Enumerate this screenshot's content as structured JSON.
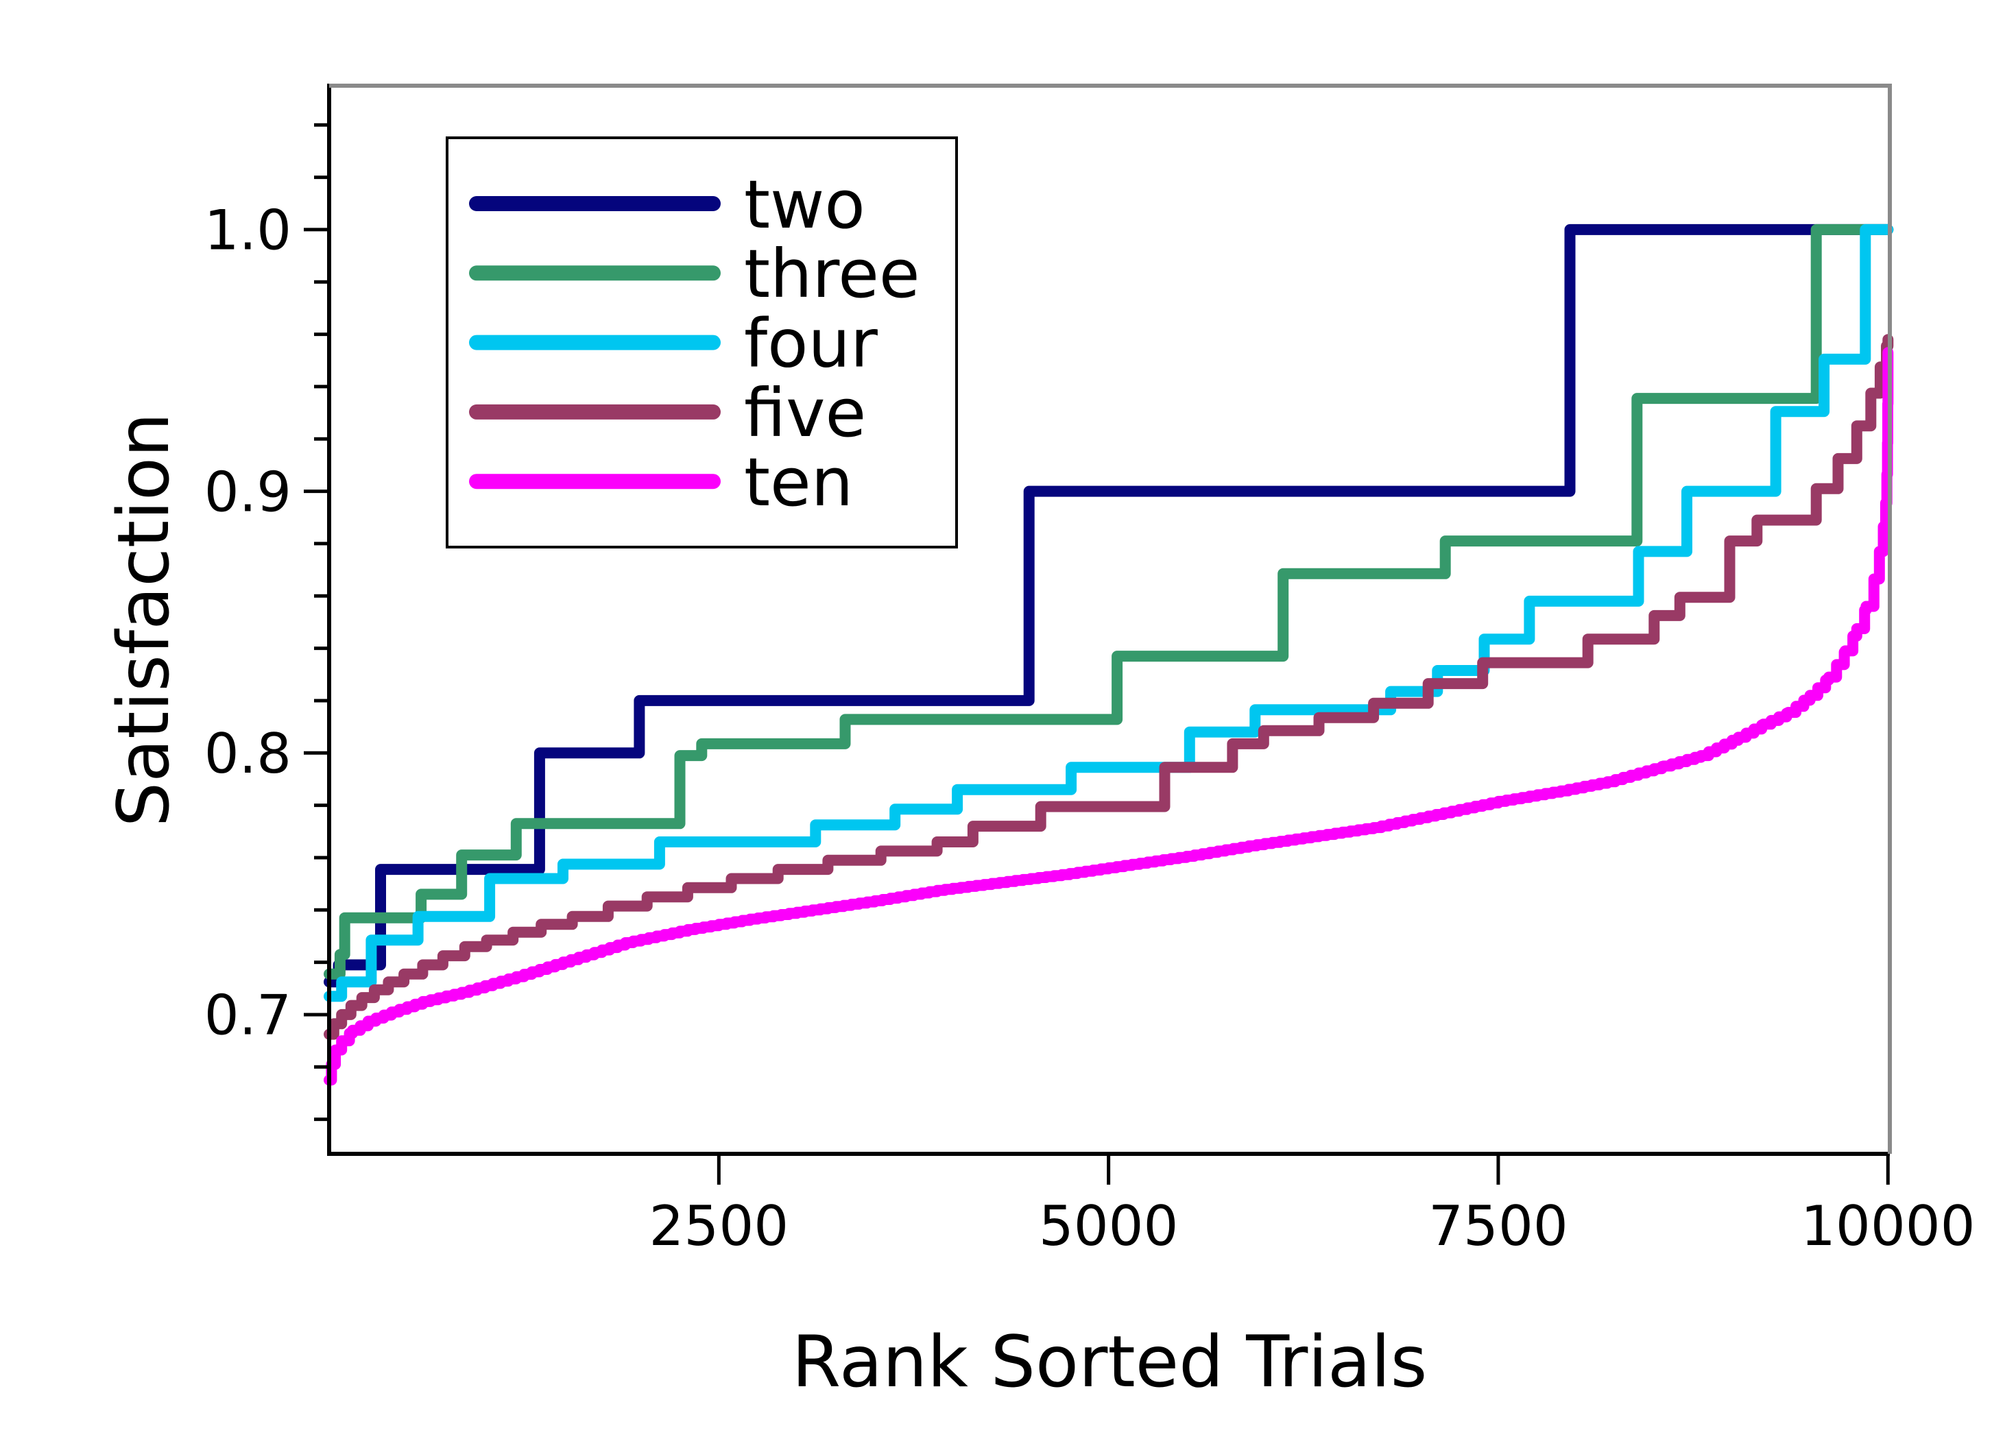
{
  "chart_data": {
    "type": "line",
    "subtype": "rank-sorted step curves",
    "title": "",
    "xlabel": "Rank Sorted Trials",
    "ylabel": "Satisfaction",
    "xlim": [
      0,
      10012
    ],
    "ylim": [
      0.6468,
      1.055
    ],
    "grid": false,
    "legend_position": "upper left",
    "x_ticks": [
      {
        "value": 2500,
        "label": "2500"
      },
      {
        "value": 5000,
        "label": "5000"
      },
      {
        "value": 7500,
        "label": "7500"
      },
      {
        "value": 10000,
        "label": "10000"
      }
    ],
    "y_ticks": [
      {
        "value": 0.7,
        "label": "0.7"
      },
      {
        "value": 0.8,
        "label": "0.8"
      },
      {
        "value": 0.9,
        "label": "0.9"
      },
      {
        "value": 1.0,
        "label": "1.0"
      }
    ],
    "y_minor_ticks": [
      0.66,
      0.68,
      0.72,
      0.74,
      0.76,
      0.78,
      0.82,
      0.84,
      0.86,
      0.88,
      0.92,
      0.94,
      0.96,
      0.98,
      1.02,
      1.04
    ],
    "series": [
      {
        "name": "two",
        "color": "#05057d",
        "render": "step",
        "points": [
          [
            0,
            0.7125
          ],
          [
            60,
            0.719
          ],
          [
            330,
            0.7555
          ],
          [
            1350,
            0.8
          ],
          [
            1990,
            0.82
          ],
          [
            4490,
            0.9
          ],
          [
            7960,
            1.0
          ],
          [
            10000,
            1.0
          ]
        ]
      },
      {
        "name": "three",
        "color": "#36996b",
        "render": "step",
        "points": [
          [
            0,
            0.7155
          ],
          [
            70,
            0.723
          ],
          [
            100,
            0.737
          ],
          [
            590,
            0.746
          ],
          [
            850,
            0.761
          ],
          [
            1200,
            0.773
          ],
          [
            2250,
            0.799
          ],
          [
            2390,
            0.8035
          ],
          [
            3310,
            0.8128
          ],
          [
            5055,
            0.837
          ],
          [
            6120,
            0.8685
          ],
          [
            7160,
            0.881
          ],
          [
            8390,
            0.9355
          ],
          [
            9540,
            1.0
          ],
          [
            10000,
            1.0
          ]
        ]
      },
      {
        "name": "four",
        "color": "#00c6f0",
        "render": "step",
        "points": [
          [
            0,
            0.707
          ],
          [
            80,
            0.7125
          ],
          [
            270,
            0.7285
          ],
          [
            570,
            0.7375
          ],
          [
            1030,
            0.752
          ],
          [
            1500,
            0.7575
          ],
          [
            2120,
            0.766
          ],
          [
            3120,
            0.7725
          ],
          [
            3630,
            0.7785
          ],
          [
            4030,
            0.786
          ],
          [
            4760,
            0.7945
          ],
          [
            5520,
            0.808
          ],
          [
            5940,
            0.8165
          ],
          [
            6810,
            0.8235
          ],
          [
            7110,
            0.8315
          ],
          [
            7410,
            0.8435
          ],
          [
            7700,
            0.858
          ],
          [
            8400,
            0.877
          ],
          [
            8710,
            0.9
          ],
          [
            9280,
            0.9305
          ],
          [
            9590,
            0.9505
          ],
          [
            9855,
            1.0
          ],
          [
            10000,
            1.0
          ]
        ]
      },
      {
        "name": "five",
        "color": "#993a65",
        "render": "step",
        "points": [
          [
            0,
            0.6925
          ],
          [
            30,
            0.6965
          ],
          [
            80,
            0.7
          ],
          [
            140,
            0.7035
          ],
          [
            210,
            0.7065
          ],
          [
            290,
            0.7095
          ],
          [
            380,
            0.7125
          ],
          [
            480,
            0.7155
          ],
          [
            600,
            0.719
          ],
          [
            730,
            0.7225
          ],
          [
            870,
            0.726
          ],
          [
            1010,
            0.7285
          ],
          [
            1180,
            0.7315
          ],
          [
            1360,
            0.7345
          ],
          [
            1560,
            0.7375
          ],
          [
            1790,
            0.7415
          ],
          [
            2040,
            0.745
          ],
          [
            2300,
            0.7485
          ],
          [
            2580,
            0.752
          ],
          [
            2880,
            0.7555
          ],
          [
            3200,
            0.759
          ],
          [
            3540,
            0.7625
          ],
          [
            3900,
            0.766
          ],
          [
            4130,
            0.772
          ],
          [
            4565,
            0.7795
          ],
          [
            5360,
            0.7945
          ],
          [
            5795,
            0.8035
          ],
          [
            5995,
            0.8085
          ],
          [
            6350,
            0.8135
          ],
          [
            6700,
            0.819
          ],
          [
            7050,
            0.8265
          ],
          [
            7400,
            0.8345
          ],
          [
            8075,
            0.8435
          ],
          [
            8500,
            0.8525
          ],
          [
            8665,
            0.8595
          ],
          [
            8985,
            0.881
          ],
          [
            9160,
            0.889
          ],
          [
            9540,
            0.901
          ],
          [
            9680,
            0.9125
          ],
          [
            9800,
            0.925
          ],
          [
            9890,
            0.9375
          ],
          [
            9950,
            0.9475
          ],
          [
            9990,
            0.9555
          ],
          [
            10000,
            0.958
          ]
        ]
      },
      {
        "name": "ten",
        "color": "#fb00fb",
        "render": "micro-step",
        "micro_step_trials": 50,
        "points": [
          [
            0,
            0.675
          ],
          [
            15,
            0.681
          ],
          [
            40,
            0.6865
          ],
          [
            80,
            0.69
          ],
          [
            150,
            0.694
          ],
          [
            250,
            0.6975
          ],
          [
            400,
            0.701
          ],
          [
            600,
            0.705
          ],
          [
            850,
            0.7085
          ],
          [
            1200,
            0.7145
          ],
          [
            1550,
            0.721
          ],
          [
            1900,
            0.7275
          ],
          [
            2300,
            0.7325
          ],
          [
            2700,
            0.7365
          ],
          [
            3100,
            0.74
          ],
          [
            3500,
            0.7435
          ],
          [
            3900,
            0.7475
          ],
          [
            4300,
            0.7505
          ],
          [
            4700,
            0.7535
          ],
          [
            5100,
            0.757
          ],
          [
            5500,
            0.7605
          ],
          [
            5900,
            0.7645
          ],
          [
            6300,
            0.768
          ],
          [
            6700,
            0.7715
          ],
          [
            7100,
            0.7765
          ],
          [
            7500,
            0.7815
          ],
          [
            7900,
            0.7855
          ],
          [
            8200,
            0.789
          ],
          [
            8560,
            0.795
          ],
          [
            8800,
            0.799
          ],
          [
            9040,
            0.806
          ],
          [
            9200,
            0.811
          ],
          [
            9360,
            0.8155
          ],
          [
            9500,
            0.822
          ],
          [
            9620,
            0.829
          ],
          [
            9725,
            0.839
          ],
          [
            9800,
            0.8475
          ],
          [
            9860,
            0.856
          ],
          [
            9910,
            0.8665
          ],
          [
            9945,
            0.877
          ],
          [
            9970,
            0.8865
          ],
          [
            9985,
            0.8955
          ],
          [
            9993,
            0.9065
          ],
          [
            9997,
            0.9185
          ],
          [
            9999,
            0.9335
          ],
          [
            10000,
            0.953
          ]
        ]
      }
    ],
    "legend": {
      "entries": [
        {
          "label": "two",
          "series": "two"
        },
        {
          "label": "three",
          "series": "three"
        },
        {
          "label": "four",
          "series": "four"
        },
        {
          "label": "five",
          "series": "five"
        },
        {
          "label": "ten",
          "series": "ten"
        }
      ]
    }
  },
  "colors": {
    "background": "#ffffff",
    "spine_primary": "#000000",
    "spine_secondary": "#8a8a8a",
    "text": "#000000",
    "legend_border": "#000000",
    "legend_fill": "#ffffff"
  }
}
